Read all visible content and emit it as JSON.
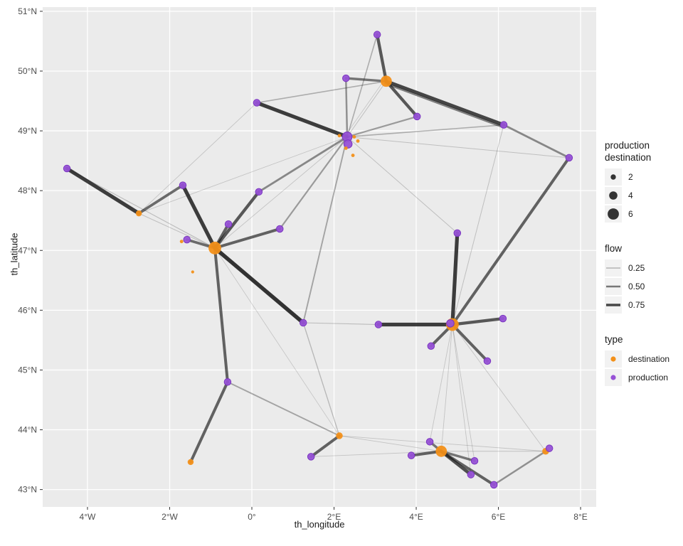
{
  "chart_data": {
    "type": "scatter",
    "subtype": "geographic-flow-network",
    "xlabel": "th_longitude",
    "ylabel": "th_latitude",
    "xlim": [
      -5.09,
      8.38
    ],
    "ylim": [
      42.71,
      51.07
    ],
    "grid": "major-white-on-grey",
    "legend_position": "right",
    "colors": {
      "panel_bg": "#EBEBEB",
      "gridline": "#FFFFFF",
      "edge": "#1a1a1a",
      "destination": "#F39019",
      "production": "#9752D6",
      "production_stroke": "#7a35c0",
      "tick_text": "#4d4d4d",
      "title_text": "#1a1a1a",
      "legend_key_bg": "#f2f2f2",
      "legend_point": "#333333"
    },
    "x_ticks": [
      {
        "label": "4°W",
        "value": -4
      },
      {
        "label": "2°W",
        "value": -2
      },
      {
        "label": "0°",
        "value": 0
      },
      {
        "label": "2°E",
        "value": 2
      },
      {
        "label": "4°E",
        "value": 4
      },
      {
        "label": "6°E",
        "value": 6
      },
      {
        "label": "8°E",
        "value": 8
      }
    ],
    "y_ticks": [
      {
        "label": "43°N",
        "value": 43
      },
      {
        "label": "44°N",
        "value": 44
      },
      {
        "label": "45°N",
        "value": 45
      },
      {
        "label": "46°N",
        "value": 46
      },
      {
        "label": "47°N",
        "value": 47
      },
      {
        "label": "48°N",
        "value": 48
      },
      {
        "label": "49°N",
        "value": 49
      },
      {
        "label": "50°N",
        "value": 50
      },
      {
        "label": "51°N",
        "value": 51
      }
    ],
    "nodes": [
      {
        "id": "n1",
        "lon": 3.05,
        "lat": 50.61,
        "type": "production",
        "size": 3
      },
      {
        "id": "n2",
        "lon": 2.29,
        "lat": 49.88,
        "type": "production",
        "size": 3
      },
      {
        "id": "n3",
        "lon": 3.27,
        "lat": 49.83,
        "type": "destination",
        "size": 6
      },
      {
        "id": "n4",
        "lon": 0.12,
        "lat": 49.47,
        "type": "production",
        "size": 3
      },
      {
        "id": "n5",
        "lon": 4.02,
        "lat": 49.24,
        "type": "production",
        "size": 3
      },
      {
        "id": "n6",
        "lon": 6.13,
        "lat": 49.1,
        "type": "production",
        "size": 3
      },
      {
        "id": "n7",
        "lon": 2.32,
        "lat": 48.9,
        "type": "production",
        "size": 5
      },
      {
        "id": "n8",
        "lon": 2.34,
        "lat": 48.78,
        "type": "production",
        "size": 4
      },
      {
        "id": "n9",
        "lon": 2.13,
        "lat": 48.92,
        "type": "destination",
        "size": 0.8
      },
      {
        "id": "n10",
        "lon": 2.49,
        "lat": 48.9,
        "type": "destination",
        "size": 0.8
      },
      {
        "id": "n11",
        "lon": 2.58,
        "lat": 48.83,
        "type": "destination",
        "size": 0.8
      },
      {
        "id": "n12",
        "lon": 2.29,
        "lat": 48.71,
        "type": "destination",
        "size": 0.8
      },
      {
        "id": "n13",
        "lon": 2.46,
        "lat": 48.59,
        "type": "destination",
        "size": 0.8
      },
      {
        "id": "n14",
        "lon": 7.72,
        "lat": 48.55,
        "type": "production",
        "size": 3
      },
      {
        "id": "n15",
        "lon": -4.5,
        "lat": 48.37,
        "type": "production",
        "size": 3
      },
      {
        "id": "n16",
        "lon": -1.68,
        "lat": 48.09,
        "type": "production",
        "size": 3
      },
      {
        "id": "n17",
        "lon": 0.17,
        "lat": 47.98,
        "type": "production",
        "size": 3
      },
      {
        "id": "n18",
        "lon": -2.75,
        "lat": 47.62,
        "type": "destination",
        "size": 2.5
      },
      {
        "id": "n19",
        "lon": -0.57,
        "lat": 47.44,
        "type": "production",
        "size": 3
      },
      {
        "id": "n20",
        "lon": 0.68,
        "lat": 47.36,
        "type": "production",
        "size": 3
      },
      {
        "id": "n21",
        "lon": 5.0,
        "lat": 47.29,
        "type": "production",
        "size": 3
      },
      {
        "id": "n22",
        "lon": -1.58,
        "lat": 47.18,
        "type": "production",
        "size": 3
      },
      {
        "id": "n23",
        "lon": -1.71,
        "lat": 47.15,
        "type": "destination",
        "size": 0.8
      },
      {
        "id": "n24",
        "lon": -0.9,
        "lat": 47.04,
        "type": "destination",
        "size": 7
      },
      {
        "id": "n25",
        "lon": -1.44,
        "lat": 46.64,
        "type": "destination",
        "size": 0.5
      },
      {
        "id": "n26",
        "lon": 1.25,
        "lat": 45.79,
        "type": "production",
        "size": 3
      },
      {
        "id": "n27",
        "lon": 3.08,
        "lat": 45.76,
        "type": "production",
        "size": 3
      },
      {
        "id": "n28",
        "lon": 4.88,
        "lat": 45.76,
        "type": "destination",
        "size": 7
      },
      {
        "id": "n29",
        "lon": 4.83,
        "lat": 45.78,
        "type": "production",
        "size": 3.5
      },
      {
        "id": "n30",
        "lon": 6.11,
        "lat": 45.86,
        "type": "production",
        "size": 3
      },
      {
        "id": "n31",
        "lon": 4.36,
        "lat": 45.4,
        "type": "production",
        "size": 3
      },
      {
        "id": "n32",
        "lon": 5.73,
        "lat": 45.15,
        "type": "production",
        "size": 3
      },
      {
        "id": "n33",
        "lon": -0.59,
        "lat": 44.8,
        "type": "production",
        "size": 3
      },
      {
        "id": "n34",
        "lon": -1.49,
        "lat": 43.46,
        "type": "destination",
        "size": 2.5
      },
      {
        "id": "n35",
        "lon": 2.13,
        "lat": 43.9,
        "type": "destination",
        "size": 3
      },
      {
        "id": "n36",
        "lon": 1.44,
        "lat": 43.55,
        "type": "production",
        "size": 3
      },
      {
        "id": "n37",
        "lon": 4.33,
        "lat": 43.8,
        "type": "production",
        "size": 3
      },
      {
        "id": "n38",
        "lon": 4.61,
        "lat": 43.64,
        "type": "destination",
        "size": 6
      },
      {
        "id": "n39",
        "lon": 3.88,
        "lat": 43.57,
        "type": "production",
        "size": 3
      },
      {
        "id": "n40",
        "lon": 5.42,
        "lat": 43.48,
        "type": "production",
        "size": 3
      },
      {
        "id": "n41",
        "lon": 5.33,
        "lat": 43.25,
        "type": "production",
        "size": 3
      },
      {
        "id": "n42",
        "lon": 5.89,
        "lat": 43.08,
        "type": "production",
        "size": 3
      },
      {
        "id": "n43",
        "lon": 7.15,
        "lat": 43.64,
        "type": "destination",
        "size": 3
      },
      {
        "id": "n44",
        "lon": 7.24,
        "lat": 43.69,
        "type": "production",
        "size": 3
      }
    ],
    "edges": [
      {
        "s": "n15",
        "t": "n18",
        "flow": 0.8
      },
      {
        "s": "n18",
        "t": "n16",
        "flow": 0.55
      },
      {
        "s": "n16",
        "t": "n24",
        "flow": 0.8
      },
      {
        "s": "n24",
        "t": "n19",
        "flow": 0.6
      },
      {
        "s": "n24",
        "t": "n22",
        "flow": 0.55
      },
      {
        "s": "n24",
        "t": "n20",
        "flow": 0.6
      },
      {
        "s": "n24",
        "t": "n17",
        "flow": 0.65
      },
      {
        "s": "n24",
        "t": "n26",
        "flow": 0.85
      },
      {
        "s": "n24",
        "t": "n33",
        "flow": 0.6
      },
      {
        "s": "n33",
        "t": "n34",
        "flow": 0.6
      },
      {
        "s": "n33",
        "t": "n35",
        "flow": 0.25
      },
      {
        "s": "n36",
        "t": "n35",
        "flow": 0.6
      },
      {
        "s": "n4",
        "t": "n7",
        "flow": 0.8
      },
      {
        "s": "n2",
        "t": "n7",
        "flow": 0.35
      },
      {
        "s": "n1",
        "t": "n7",
        "flow": 0.2
      },
      {
        "s": "n1",
        "t": "n3",
        "flow": 0.65
      },
      {
        "s": "n2",
        "t": "n3",
        "flow": 0.5
      },
      {
        "s": "n3",
        "t": "n5",
        "flow": 0.65
      },
      {
        "s": "n3",
        "t": "n6",
        "flow": 0.75
      },
      {
        "s": "n3",
        "t": "n6",
        "flow": 0.45,
        "off": 1
      },
      {
        "s": "n6",
        "t": "n14",
        "flow": 0.4
      },
      {
        "s": "n14",
        "t": "n28",
        "flow": 0.6
      },
      {
        "s": "n5",
        "t": "n7",
        "flow": 0.3
      },
      {
        "s": "n7",
        "t": "n6",
        "flow": 0.2
      },
      {
        "s": "n7",
        "t": "n14",
        "flow": 0.1
      },
      {
        "s": "n7",
        "t": "n21",
        "flow": 0.1
      },
      {
        "s": "n7",
        "t": "n26",
        "flow": 0.25
      },
      {
        "s": "n7",
        "t": "n20",
        "flow": 0.3
      },
      {
        "s": "n7",
        "t": "n17",
        "flow": 0.4
      },
      {
        "s": "n7",
        "t": "n24",
        "flow": 0.08
      },
      {
        "s": "n7",
        "t": "n18",
        "flow": 0.08
      },
      {
        "s": "n3",
        "t": "n7",
        "flow": 0.1
      },
      {
        "s": "n3",
        "t": "n7",
        "flow": 0.07,
        "off": 1
      },
      {
        "s": "n4",
        "t": "n3",
        "flow": 0.2
      },
      {
        "s": "n4",
        "t": "n18",
        "flow": 0.08
      },
      {
        "s": "n15",
        "t": "n24",
        "flow": 0.12
      },
      {
        "s": "n18",
        "t": "n24",
        "flow": 0.1
      },
      {
        "s": "n21",
        "t": "n28",
        "flow": 0.8
      },
      {
        "s": "n28",
        "t": "n27",
        "flow": 0.8
      },
      {
        "s": "n26",
        "t": "n27",
        "flow": 0.12
      },
      {
        "s": "n28",
        "t": "n30",
        "flow": 0.65
      },
      {
        "s": "n28",
        "t": "n31",
        "flow": 0.6
      },
      {
        "s": "n28",
        "t": "n32",
        "flow": 0.6
      },
      {
        "s": "n28",
        "t": "n6",
        "flow": 0.1
      },
      {
        "s": "n28",
        "t": "n38",
        "flow": 0.08
      },
      {
        "s": "n28",
        "t": "n37",
        "flow": 0.08
      },
      {
        "s": "n28",
        "t": "n41",
        "flow": 0.08
      },
      {
        "s": "n28",
        "t": "n43",
        "flow": 0.08
      },
      {
        "s": "n28",
        "t": "n40",
        "flow": 0.08
      },
      {
        "s": "n38",
        "t": "n39",
        "flow": 0.6
      },
      {
        "s": "n38",
        "t": "n37",
        "flow": 0.5
      },
      {
        "s": "n38",
        "t": "n40",
        "flow": 0.5
      },
      {
        "s": "n38",
        "t": "n41",
        "flow": 0.7
      },
      {
        "s": "n38",
        "t": "n42",
        "flow": 0.6
      },
      {
        "s": "n42",
        "t": "n43",
        "flow": 0.35
      },
      {
        "s": "n35",
        "t": "n38",
        "flow": 0.08
      },
      {
        "s": "n35",
        "t": "n43",
        "flow": 0.08
      },
      {
        "s": "n35",
        "t": "n24",
        "flow": 0.07
      },
      {
        "s": "n26",
        "t": "n35",
        "flow": 0.15
      },
      {
        "s": "n36",
        "t": "n38",
        "flow": 0.08
      },
      {
        "s": "n38",
        "t": "n43",
        "flow": 0.1
      }
    ],
    "legend": {
      "size": {
        "title_lines": [
          "production",
          "destination"
        ],
        "items": [
          {
            "label": "2",
            "value": 2
          },
          {
            "label": "4",
            "value": 4
          },
          {
            "label": "6",
            "value": 6
          }
        ]
      },
      "flow": {
        "title": "flow",
        "items": [
          {
            "label": "0.25",
            "value": 0.25
          },
          {
            "label": "0.50",
            "value": 0.5
          },
          {
            "label": "0.75",
            "value": 0.75
          }
        ]
      },
      "type": {
        "title": "type",
        "items": [
          {
            "label": "destination",
            "color": "#F39019"
          },
          {
            "label": "production",
            "color": "#9752D6"
          }
        ]
      }
    }
  }
}
